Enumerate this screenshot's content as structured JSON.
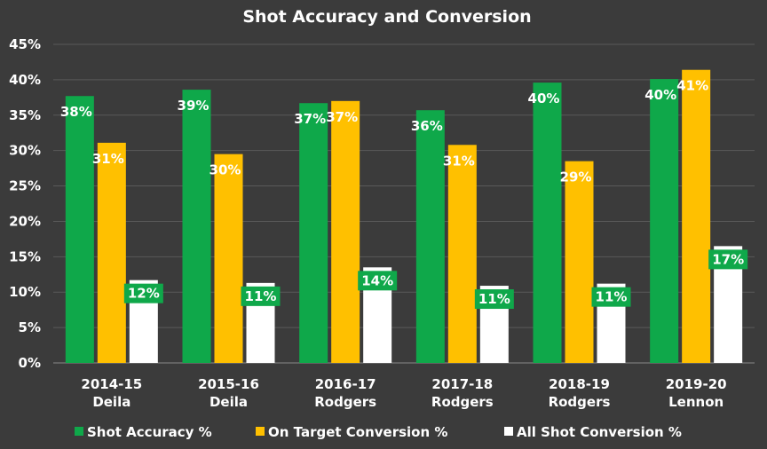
{
  "chart_data": {
    "type": "bar",
    "title": "Shot Accuracy and Conversion",
    "categories": [
      [
        "2014-15",
        "Deila"
      ],
      [
        "2015-16",
        "Deila"
      ],
      [
        "2016-17",
        "Rodgers"
      ],
      [
        "2017-18",
        "Rodgers"
      ],
      [
        "2018-19",
        "Rodgers"
      ],
      [
        "2019-20",
        "Lennon"
      ]
    ],
    "series": [
      {
        "name": "Shot Accuracy %",
        "color": "#0fa84a",
        "values": [
          37.7,
          38.6,
          36.7,
          35.7,
          39.6,
          40.1
        ],
        "labels": [
          "38%",
          "39%",
          "37%",
          "36%",
          "40%",
          "40%"
        ]
      },
      {
        "name": "On Target Conversion %",
        "color": "#ffc000",
        "values": [
          31.1,
          29.5,
          37.0,
          30.8,
          28.5,
          41.4
        ],
        "labels": [
          "31%",
          "30%",
          "37%",
          "31%",
          "29%",
          "41%"
        ]
      },
      {
        "name": "All Shot Conversion %",
        "color": "#ffffff",
        "values": [
          11.7,
          11.3,
          13.5,
          10.9,
          11.2,
          16.5
        ],
        "labels": [
          "12%",
          "11%",
          "14%",
          "11%",
          "11%",
          "17%"
        ]
      }
    ],
    "yticks": [
      "0%",
      "5%",
      "10%",
      "15%",
      "20%",
      "25%",
      "30%",
      "35%",
      "40%",
      "45%"
    ],
    "ylim": [
      0,
      45
    ],
    "ystep": 5,
    "legend_position": "bottom",
    "grid": true
  }
}
